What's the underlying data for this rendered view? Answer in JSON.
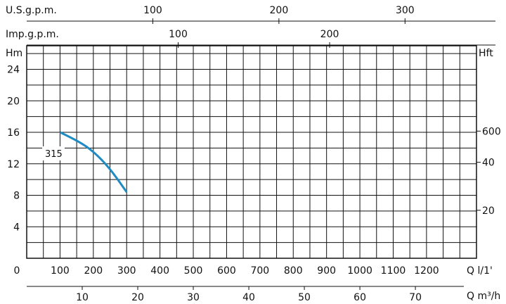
{
  "chart_data": {
    "type": "line",
    "series": [
      {
        "name": "315",
        "x": [
          100,
          150,
          200,
          250,
          300
        ],
        "y": [
          16,
          15,
          13.6,
          11.4,
          8.4
        ]
      }
    ],
    "x_axis": {
      "label": "Q l/1'",
      "min": 0,
      "max": 1350,
      "ticks": [
        0,
        100,
        200,
        300,
        400,
        500,
        600,
        700,
        800,
        900,
        1000,
        1100,
        1200
      ]
    },
    "y_axis_left": {
      "label": "Hm",
      "min": 0,
      "max": 27,
      "ticks": [
        4,
        8,
        12,
        16,
        20,
        24
      ]
    },
    "y_axis_right": {
      "label": "Hft",
      "ticks": [
        20,
        40,
        600
      ]
    },
    "top_axis_us": {
      "label": "U.S.g.p.m.",
      "ticks": [
        100,
        200,
        300
      ]
    },
    "top_axis_imp": {
      "label": "Imp.g.p.m.",
      "ticks": [
        100,
        200
      ]
    },
    "bottom_axis_m3h": {
      "label": "Q m³/h",
      "ticks": [
        10,
        20,
        30,
        40,
        50,
        60,
        70
      ]
    },
    "grid": true,
    "curve_color": "#1e8bc3"
  }
}
